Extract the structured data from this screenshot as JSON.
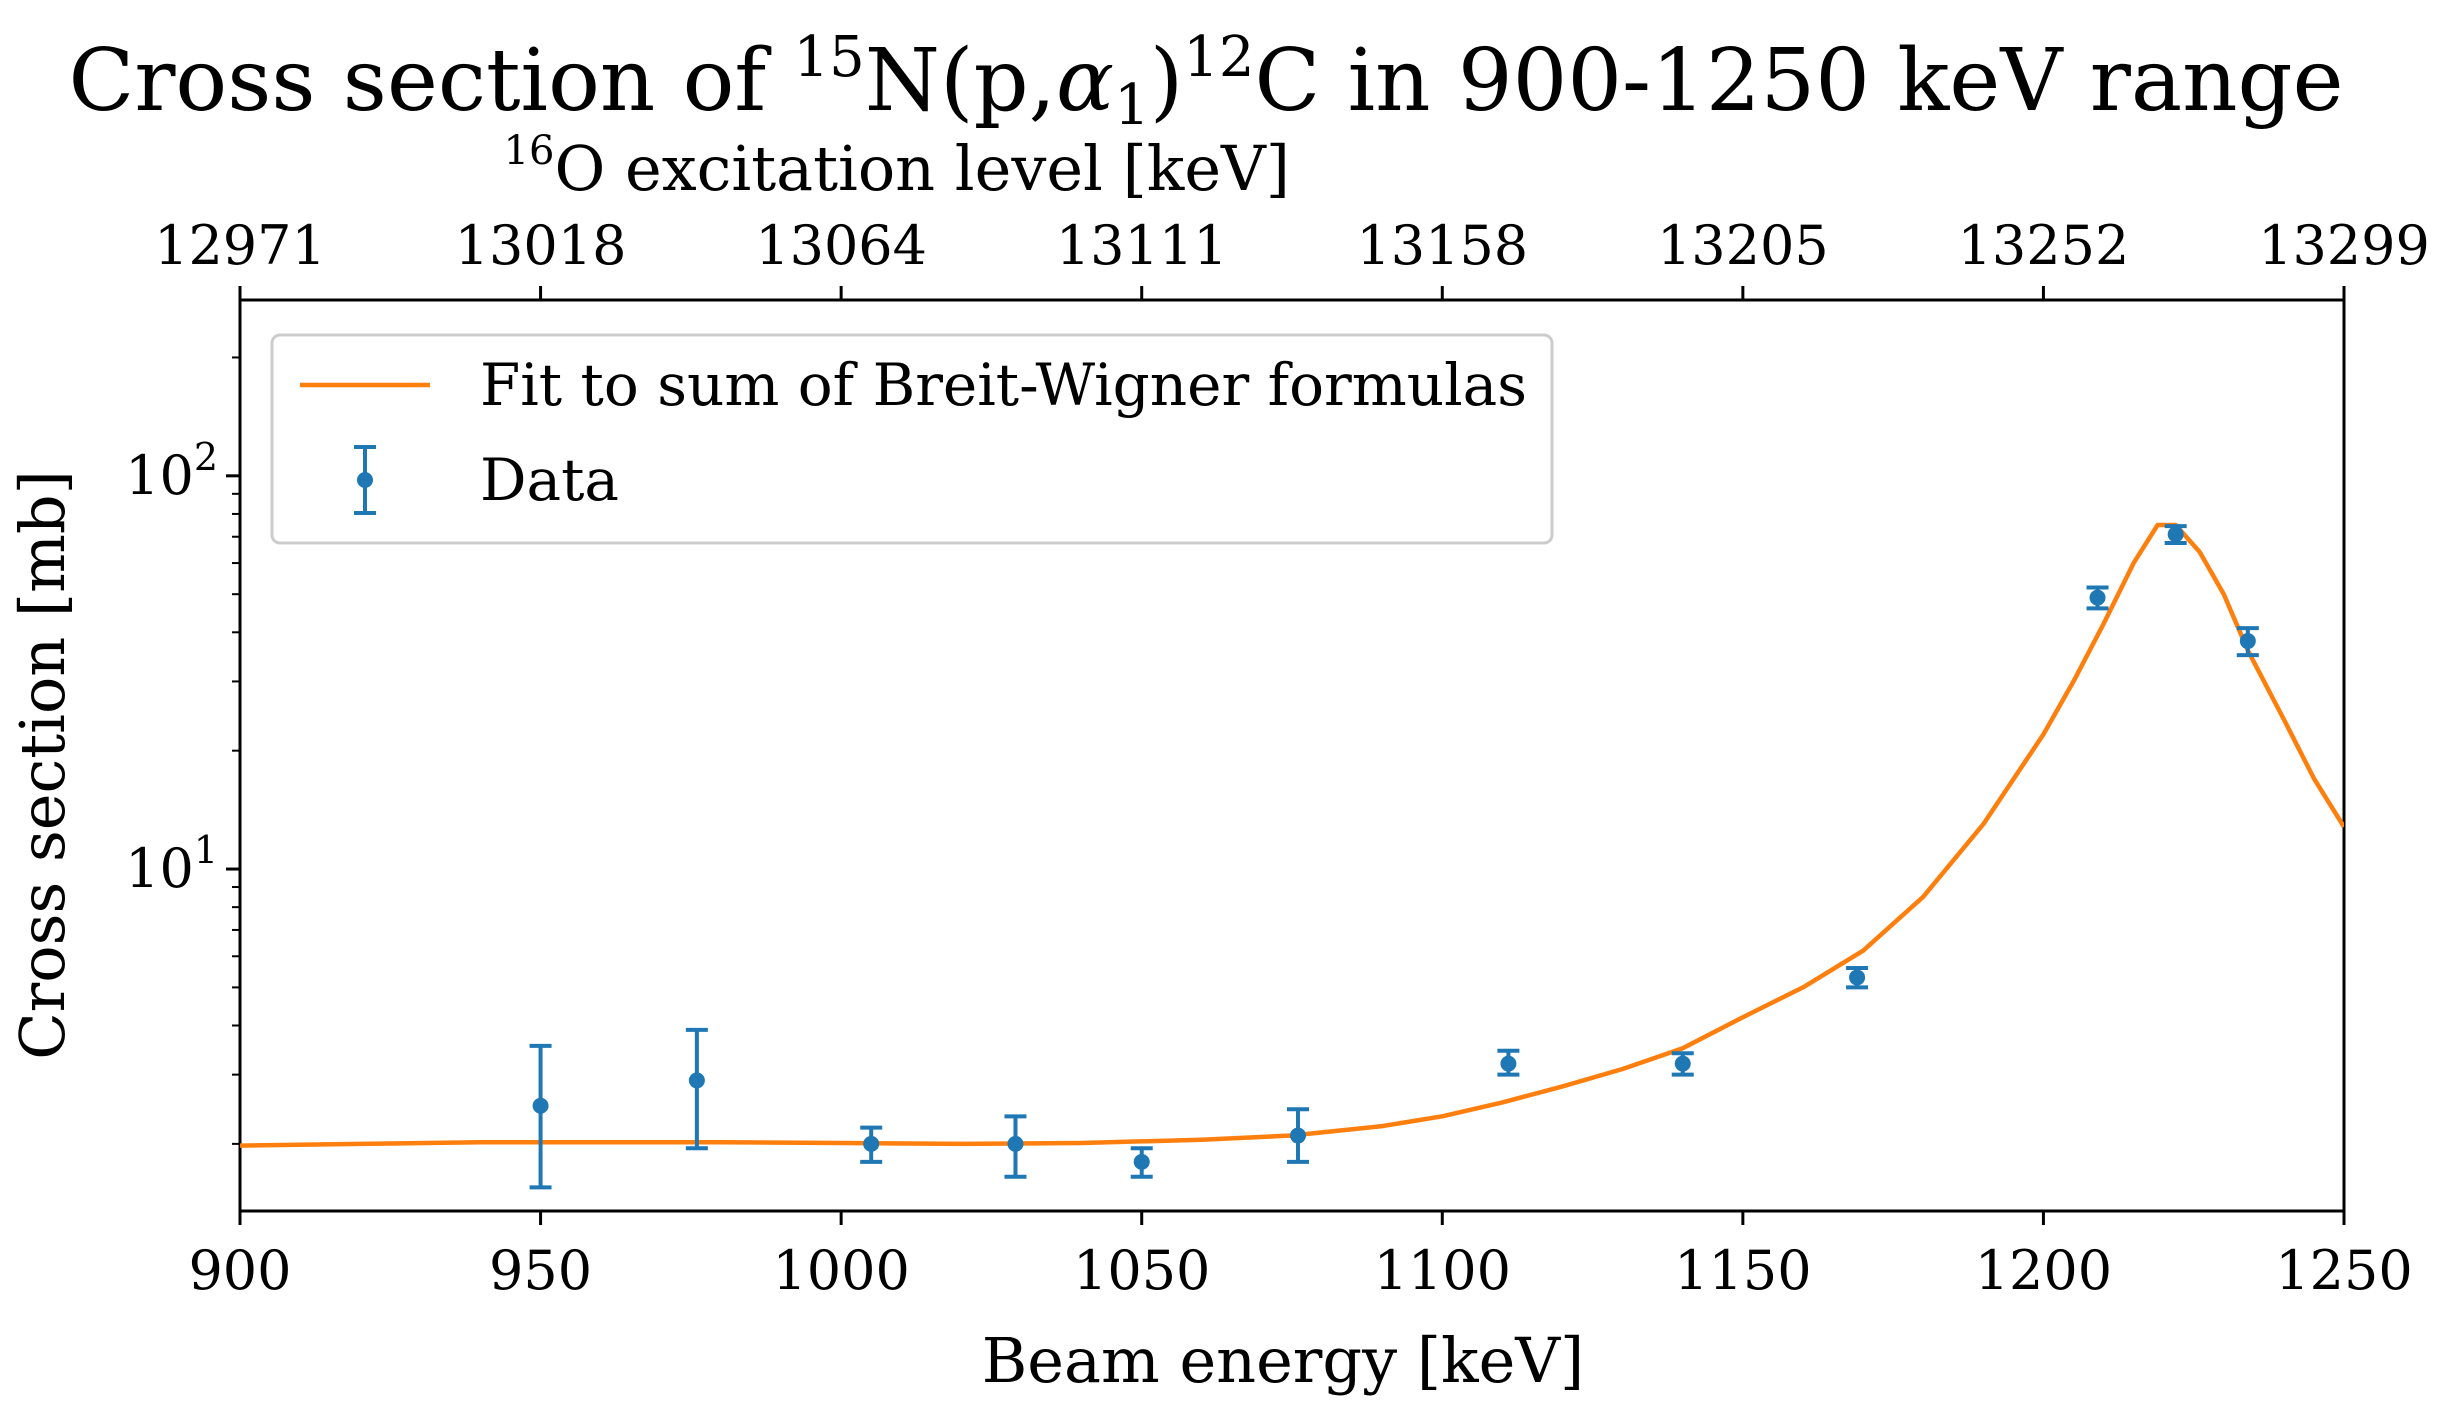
{
  "chart_data": {
    "type": "scatter",
    "title": {
      "prefix": "Cross section of ",
      "sup1": "15",
      "mid1": "N(p,",
      "alpha": "α",
      "alpha_sub": "1",
      "mid2": ")",
      "sup2": "12",
      "suffix": "C in 900-1250 keV range"
    },
    "top_axis_label": {
      "sup": "16",
      "text": "O excitation level [keV]"
    },
    "xlabel": "Beam energy [keV]",
    "ylabel": "Cross section [mb]",
    "xlim": [
      900,
      1250
    ],
    "ylim": [
      1.35,
      280
    ],
    "y_scale": "log",
    "grid": false,
    "legend_position": "upper-left",
    "x_ticks": [
      "900",
      "950",
      "1000",
      "1050",
      "1100",
      "1150",
      "1200",
      "1250"
    ],
    "top_ticks": [
      "12971",
      "13018",
      "13064",
      "13111",
      "13158",
      "13205",
      "13252",
      "13299"
    ],
    "y_ticks": [
      {
        "value": 10,
        "base": "10",
        "exp": "1"
      },
      {
        "value": 100,
        "base": "10",
        "exp": "2"
      }
    ],
    "series": [
      {
        "name": "Fit to sum of Breit-Wigner formulas",
        "kind": "line",
        "color": "#ff7f0e",
        "x": [
          900,
          920,
          940,
          960,
          980,
          1000,
          1020,
          1040,
          1060,
          1075,
          1090,
          1100,
          1110,
          1120,
          1130,
          1140,
          1150,
          1160,
          1170,
          1180,
          1190,
          1200,
          1205,
          1210,
          1215,
          1219,
          1222,
          1226,
          1230,
          1234,
          1240,
          1245,
          1250
        ],
        "y": [
          1.98,
          2.0,
          2.02,
          2.02,
          2.02,
          2.01,
          2.0,
          2.01,
          2.05,
          2.1,
          2.22,
          2.35,
          2.55,
          2.8,
          3.1,
          3.5,
          4.2,
          5.0,
          6.2,
          8.5,
          13.0,
          22.0,
          30.0,
          42.0,
          60.0,
          75.0,
          75.0,
          64.0,
          50.0,
          36.0,
          24.0,
          17.0,
          12.8
        ]
      },
      {
        "name": "Data",
        "kind": "errorbar",
        "color": "#1f77b4",
        "x": [
          950,
          976,
          1005,
          1029,
          1050,
          1076,
          1111,
          1140,
          1169,
          1209,
          1222,
          1234
        ],
        "y": [
          2.5,
          2.9,
          2.0,
          2.0,
          1.8,
          2.1,
          3.2,
          3.2,
          5.3,
          49.0,
          71.0,
          38.0
        ],
        "yerr_low": [
          0.95,
          0.95,
          0.2,
          0.35,
          0.15,
          0.3,
          0.2,
          0.2,
          0.3,
          3.0,
          3.5,
          3.0
        ],
        "yerr_high": [
          1.05,
          1.0,
          0.2,
          0.35,
          0.15,
          0.35,
          0.25,
          0.2,
          0.3,
          3.0,
          3.5,
          3.0
        ]
      }
    ]
  }
}
